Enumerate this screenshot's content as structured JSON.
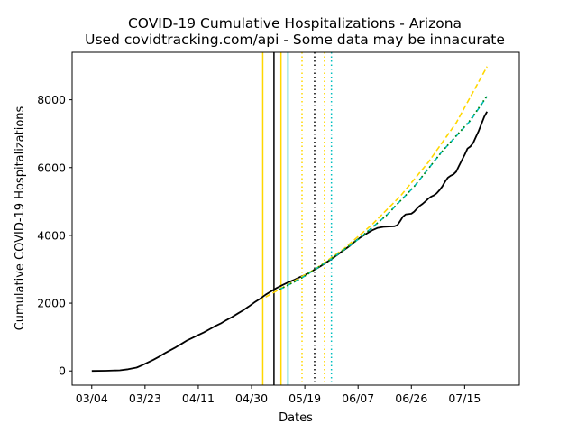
{
  "chart_data": {
    "type": "line",
    "title": "COVID-19 Cumulative Hospitalizations - Arizona",
    "subtitle": "Used covidtracking.com/api - Some data may be innacurate",
    "xlabel": "Dates",
    "ylabel": "Cumulative COVID-19 Hospitalizations",
    "x_ticks": [
      "03/04",
      "03/23",
      "04/11",
      "04/30",
      "05/19",
      "06/07",
      "06/26",
      "07/15"
    ],
    "x_tick_days": [
      0,
      19,
      38,
      57,
      76,
      95,
      114,
      133
    ],
    "xlim": [
      -7,
      152.5
    ],
    "ylim": [
      -420,
      9400
    ],
    "y_ticks": [
      0,
      2000,
      4000,
      6000,
      8000
    ],
    "grid": false,
    "legend": "none",
    "series": [
      {
        "color": "#000000",
        "style": "solid",
        "points": [
          [
            0,
            0
          ],
          [
            5,
            5
          ],
          [
            10,
            20
          ],
          [
            13,
            50
          ],
          [
            16,
            100
          ],
          [
            18,
            170
          ],
          [
            20,
            250
          ],
          [
            22,
            330
          ],
          [
            24,
            420
          ],
          [
            26,
            520
          ],
          [
            28,
            610
          ],
          [
            30,
            700
          ],
          [
            32,
            800
          ],
          [
            34,
            900
          ],
          [
            36,
            980
          ],
          [
            38,
            1060
          ],
          [
            40,
            1140
          ],
          [
            42,
            1230
          ],
          [
            44,
            1320
          ],
          [
            46,
            1400
          ],
          [
            48,
            1500
          ],
          [
            50,
            1590
          ],
          [
            52,
            1690
          ],
          [
            54,
            1790
          ],
          [
            56,
            1900
          ],
          [
            58,
            2020
          ],
          [
            60,
            2130
          ],
          [
            62,
            2250
          ],
          [
            64,
            2350
          ],
          [
            66,
            2450
          ],
          [
            68,
            2530
          ],
          [
            70,
            2610
          ],
          [
            72,
            2680
          ],
          [
            74,
            2760
          ],
          [
            76,
            2830
          ],
          [
            78,
            2920
          ],
          [
            80,
            3010
          ],
          [
            82,
            3110
          ],
          [
            84,
            3220
          ],
          [
            86,
            3330
          ],
          [
            88,
            3450
          ],
          [
            90,
            3570
          ],
          [
            92,
            3690
          ],
          [
            94,
            3830
          ],
          [
            96,
            3950
          ],
          [
            98,
            4050
          ],
          [
            100,
            4150
          ],
          [
            102,
            4220
          ],
          [
            104,
            4250
          ],
          [
            106,
            4260
          ],
          [
            108,
            4270
          ],
          [
            109,
            4300
          ],
          [
            110,
            4420
          ],
          [
            111,
            4550
          ],
          [
            112,
            4620
          ],
          [
            114,
            4640
          ],
          [
            115,
            4700
          ],
          [
            116,
            4790
          ],
          [
            117,
            4870
          ],
          [
            118,
            4930
          ],
          [
            119,
            5000
          ],
          [
            120,
            5080
          ],
          [
            121,
            5140
          ],
          [
            122,
            5180
          ],
          [
            123,
            5240
          ],
          [
            124,
            5330
          ],
          [
            125,
            5440
          ],
          [
            126,
            5580
          ],
          [
            127,
            5700
          ],
          [
            128,
            5760
          ],
          [
            129,
            5800
          ],
          [
            130,
            5880
          ],
          [
            131,
            6050
          ],
          [
            132,
            6220
          ],
          [
            133,
            6380
          ],
          [
            134,
            6560
          ],
          [
            135,
            6620
          ],
          [
            136,
            6720
          ],
          [
            137,
            6900
          ],
          [
            138,
            7080
          ],
          [
            139,
            7290
          ],
          [
            140,
            7500
          ],
          [
            141,
            7650
          ]
        ]
      },
      {
        "color": "#FFD700",
        "style": "dashed",
        "points": [
          [
            62,
            2180
          ],
          [
            70,
            2550
          ],
          [
            80,
            3020
          ],
          [
            90,
            3610
          ],
          [
            100,
            4320
          ],
          [
            110,
            5150
          ],
          [
            120,
            6150
          ],
          [
            130,
            7320
          ],
          [
            141,
            8980
          ]
        ]
      },
      {
        "color": "#00BFBF",
        "style": "dashed",
        "points": [
          [
            67,
            2400
          ],
          [
            75,
            2750
          ],
          [
            85,
            3280
          ],
          [
            95,
            3880
          ],
          [
            105,
            4580
          ],
          [
            115,
            5440
          ],
          [
            125,
            6480
          ],
          [
            135,
            7380
          ],
          [
            141,
            8100
          ]
        ]
      },
      {
        "color": "#008000",
        "style": "dotted",
        "points": [
          [
            67,
            2400
          ],
          [
            75,
            2750
          ],
          [
            85,
            3280
          ],
          [
            95,
            3880
          ],
          [
            105,
            4580
          ],
          [
            115,
            5440
          ],
          [
            125,
            6480
          ],
          [
            135,
            7400
          ],
          [
            141,
            8120
          ]
        ]
      }
    ],
    "vlines": [
      {
        "x": 61,
        "color": "#FFD700",
        "style": "solid"
      },
      {
        "x": 65,
        "color": "#000000",
        "style": "solid"
      },
      {
        "x": 67.5,
        "color": "#FFD700",
        "style": "solid"
      },
      {
        "x": 70,
        "color": "#00BFBF",
        "style": "solid"
      },
      {
        "x": 75,
        "color": "#FFD700",
        "style": "dotted"
      },
      {
        "x": 79.5,
        "color": "#000000",
        "style": "dotted"
      },
      {
        "x": 83,
        "color": "#FFD700",
        "style": "dotted"
      },
      {
        "x": 85.5,
        "color": "#00BFBF",
        "style": "dotted"
      }
    ]
  }
}
